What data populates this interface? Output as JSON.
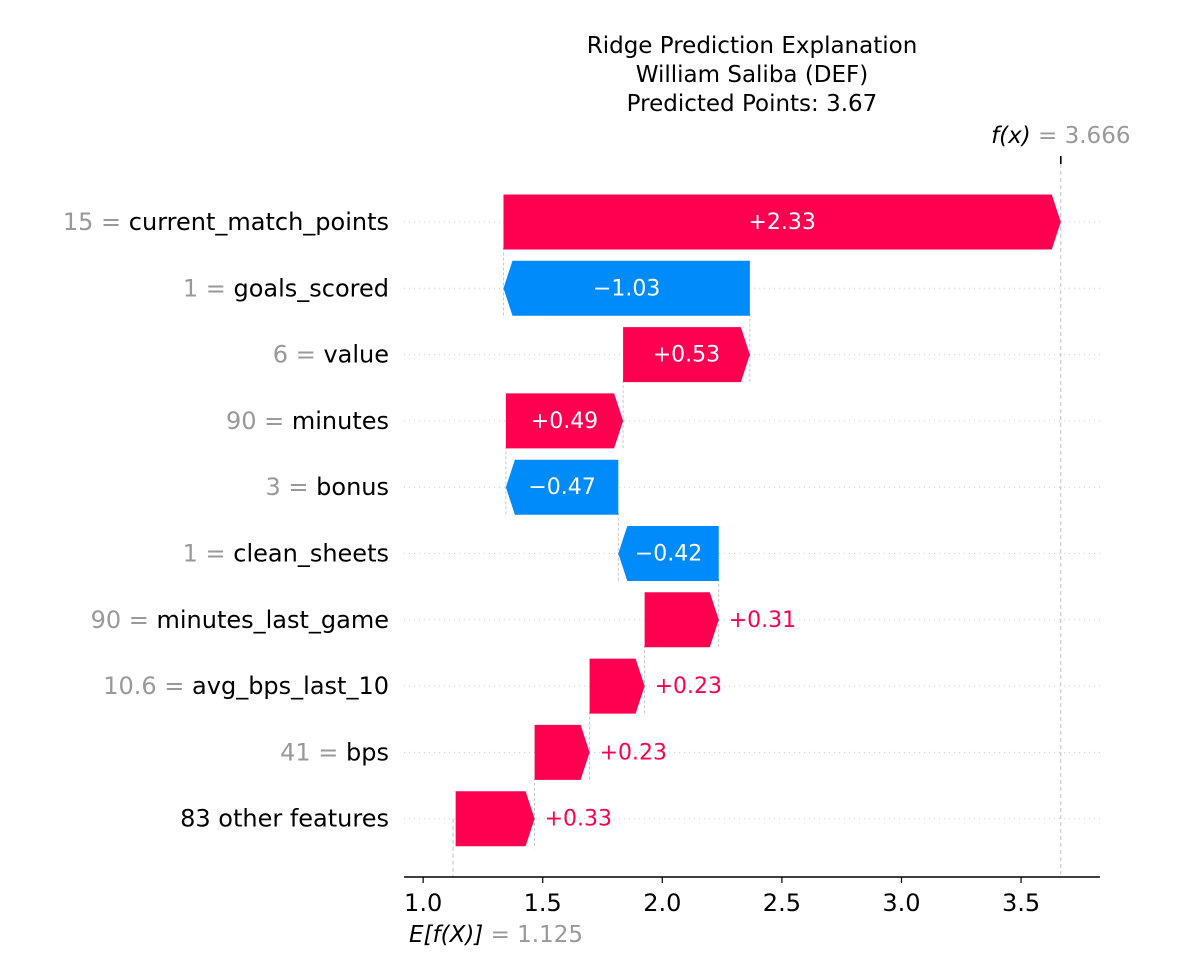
{
  "chart_data": {
    "type": "waterfall",
    "title": "Ridge Prediction Explanation",
    "subtitle_lines": [
      "William Saliba (DEF)",
      "Predicted Points: 3.67"
    ],
    "base_value": 1.125,
    "base_label": "E[f(X)]",
    "base_value_text": "= 1.125",
    "final_value": 3.666,
    "final_label": "f(x)",
    "final_value_text": "= 3.666",
    "xlim": [
      0.92,
      3.83
    ],
    "x_ticks": [
      1.0,
      1.5,
      2.0,
      2.5,
      3.0,
      3.5
    ],
    "x_tick_labels": [
      "1.0",
      "1.5",
      "2.0",
      "2.5",
      "3.0",
      "3.5"
    ],
    "features": [
      {
        "value_text": "15",
        "name": "current_match_points",
        "contribution": 2.33,
        "label": "+2.33"
      },
      {
        "value_text": "1",
        "name": "goals_scored",
        "contribution": -1.03,
        "label": "−1.03"
      },
      {
        "value_text": "6",
        "name": "value",
        "contribution": 0.53,
        "label": "+0.53"
      },
      {
        "value_text": "90",
        "name": "minutes",
        "contribution": 0.49,
        "label": "+0.49"
      },
      {
        "value_text": "3",
        "name": "bonus",
        "contribution": -0.47,
        "label": "−0.47"
      },
      {
        "value_text": "1",
        "name": "clean_sheets",
        "contribution": -0.42,
        "label": "−0.42"
      },
      {
        "value_text": "90",
        "name": "minutes_last_game",
        "contribution": 0.31,
        "label": "+0.31"
      },
      {
        "value_text": "10.6",
        "name": "avg_bps_last_10",
        "contribution": 0.23,
        "label": "+0.23"
      },
      {
        "value_text": "41",
        "name": "bps",
        "contribution": 0.23,
        "label": "+0.23"
      },
      {
        "value_text": "",
        "name": "83 other features",
        "contribution": 0.33,
        "label": "+0.33"
      }
    ],
    "colors": {
      "positive": "#ff0051",
      "negative": "#008bfb",
      "muted_text": "#999999",
      "grid": "#cccccc"
    }
  }
}
